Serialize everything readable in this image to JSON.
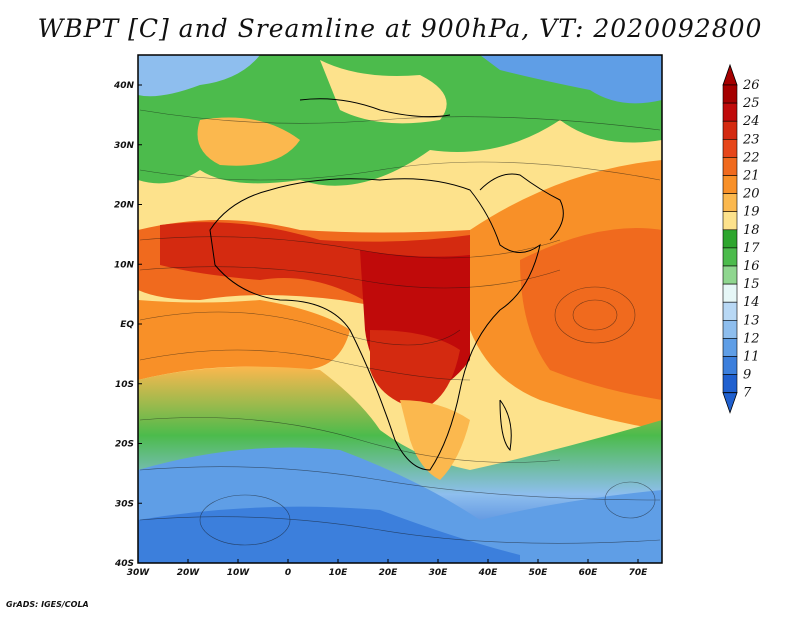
{
  "title": "WBPT [C] and Sreamline at 900hPa, VT: 2020092800",
  "credit": "GrADS: IGES/COLA",
  "map": {
    "lon_range": [
      -30,
      75
    ],
    "lat_range": [
      -40,
      45
    ],
    "lat_ticks": [
      "40N",
      "30N",
      "20N",
      "10N",
      "EQ",
      "10S",
      "20S",
      "30S",
      "40S"
    ],
    "lon_ticks": [
      "30W",
      "20W",
      "10W",
      "0",
      "10E",
      "20E",
      "30E",
      "40E",
      "50E",
      "60E",
      "70E"
    ]
  },
  "colorbar": {
    "labels": [
      "26",
      "25",
      "24",
      "23",
      "22",
      "21",
      "20",
      "19",
      "18",
      "17",
      "16",
      "15",
      "14",
      "13",
      "12",
      "11",
      "9",
      "7"
    ],
    "colors": [
      "#a50000",
      "#c00a0a",
      "#d42a10",
      "#e6461a",
      "#f06a1e",
      "#f89028",
      "#fbb84e",
      "#fde28c",
      "#2ea62e",
      "#4cbb4c",
      "#8fd68f",
      "#e6f7f7",
      "#b8d8f5",
      "#8ebeee",
      "#5f9ee6",
      "#3c7fdc",
      "#2060cf"
    ],
    "bottom_color": "#2060cf",
    "top_color": "#a50000"
  }
}
